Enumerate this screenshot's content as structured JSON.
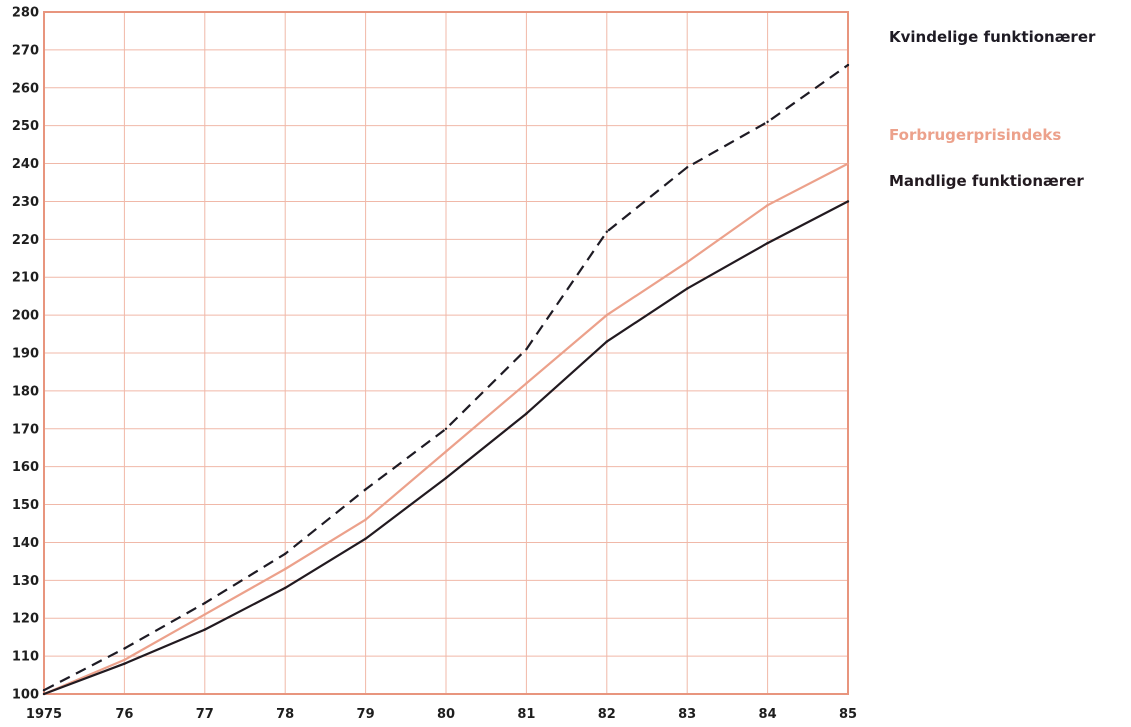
{
  "chart_data": {
    "type": "line",
    "title": "",
    "xlabel": "",
    "ylabel": "",
    "categories": [
      "1975",
      "76",
      "77",
      "78",
      "79",
      "80",
      "81",
      "82",
      "83",
      "84",
      "85"
    ],
    "ylim": [
      100,
      280
    ],
    "yticks": [
      100,
      110,
      120,
      130,
      140,
      150,
      160,
      170,
      180,
      190,
      200,
      210,
      220,
      230,
      240,
      250,
      260,
      270,
      280
    ],
    "grid": true,
    "legend_position": "right",
    "series": [
      {
        "name": "Kvindelige funktionærer",
        "values": [
          101,
          112,
          124,
          137,
          154,
          170,
          191,
          222,
          239,
          251,
          266
        ],
        "color": "#1e1b24",
        "style": "dashed"
      },
      {
        "name": "Forbrugerprisindeks",
        "values": [
          100,
          109,
          121,
          133,
          146,
          164,
          182,
          200,
          214,
          229,
          240
        ],
        "color": "#eca18b",
        "style": "solid"
      },
      {
        "name": "Mandlige funktionærer",
        "values": [
          100,
          108,
          117,
          128,
          141,
          157,
          174,
          193,
          207,
          219,
          230
        ],
        "color": "#221a20",
        "style": "solid"
      }
    ]
  },
  "colors": {
    "grid": "#f0b8a8",
    "axis_frame": "#e8957e"
  }
}
